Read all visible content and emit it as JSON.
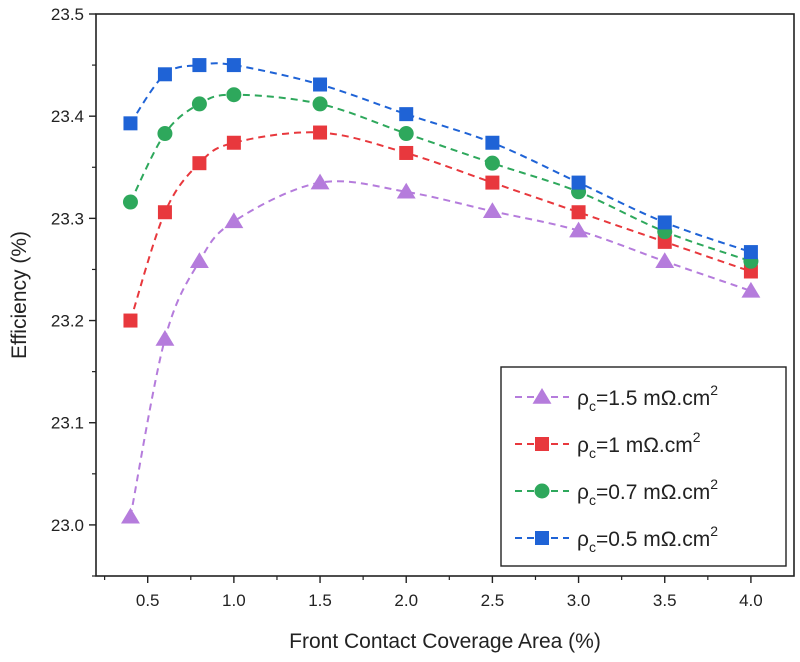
{
  "chart_data": {
    "type": "line",
    "xlabel": "Front Contact Coverage Area (%)",
    "ylabel": "Efficiency (%)",
    "xlim": [
      0.2,
      4.25
    ],
    "ylim": [
      22.95,
      23.5
    ],
    "xticks": [
      0.5,
      1.0,
      1.5,
      2.0,
      2.5,
      3.0,
      3.5,
      4.0
    ],
    "xtick_labels": [
      "0.5",
      "1.0",
      "1.5",
      "2.0",
      "2.5",
      "3.0",
      "3.5",
      "4.0"
    ],
    "yticks": [
      23.0,
      23.1,
      23.2,
      23.3,
      23.4,
      23.5
    ],
    "ytick_labels": [
      "23.0",
      "23.1",
      "23.2",
      "23.3",
      "23.4",
      "23.5"
    ],
    "legend_position": "bottom-right",
    "x": [
      0.4,
      0.6,
      0.8,
      1.0,
      1.5,
      2.0,
      2.5,
      3.0,
      3.5,
      4.0
    ],
    "series": [
      {
        "legend_main": "ρ",
        "legend_sub": "c",
        "legend_rest": "=1.5 mΩ.cm",
        "legend_sup": "2",
        "marker": "triangle",
        "color": "#b57cdc",
        "values": [
          23.008,
          23.182,
          23.258,
          23.297,
          23.335,
          23.326,
          23.307,
          23.288,
          23.258,
          23.229
        ]
      },
      {
        "legend_main": "ρ",
        "legend_sub": "c",
        "legend_rest": "=1 mΩ.cm",
        "legend_sup": "2",
        "marker": "square",
        "color": "#e8383d",
        "values": [
          23.2,
          23.306,
          23.354,
          23.374,
          23.384,
          23.364,
          23.335,
          23.306,
          23.277,
          23.248
        ]
      },
      {
        "legend_main": "ρ",
        "legend_sub": "c",
        "legend_rest": "=0.7 mΩ.cm",
        "legend_sup": "2",
        "marker": "circle",
        "color": "#2ea85c",
        "values": [
          23.316,
          23.383,
          23.412,
          23.421,
          23.412,
          23.383,
          23.354,
          23.326,
          23.287,
          23.258
        ]
      },
      {
        "legend_main": "ρ",
        "legend_sub": "c",
        "legend_rest": "=0.5 mΩ.cm",
        "legend_sup": "2",
        "marker": "square",
        "color": "#1f63d6",
        "values": [
          23.393,
          23.441,
          23.45,
          23.45,
          23.431,
          23.402,
          23.374,
          23.335,
          23.296,
          23.267
        ]
      }
    ]
  }
}
